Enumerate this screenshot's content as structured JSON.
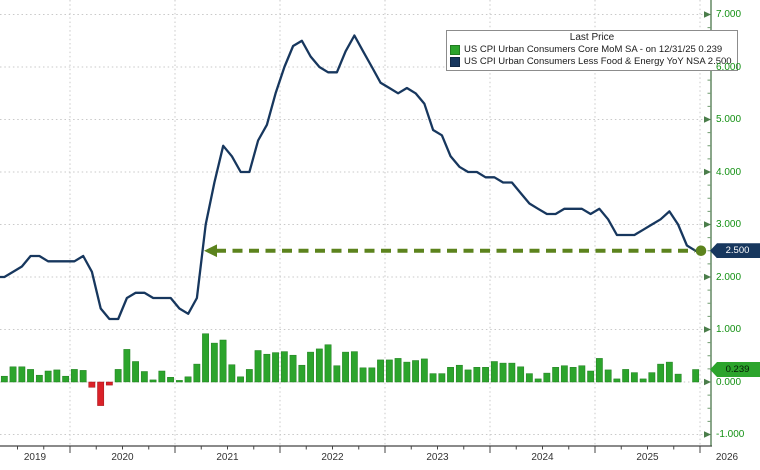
{
  "legend": {
    "title": "Last Price",
    "items": [
      {
        "label": "US CPI Urban Consumers Core MoM SA -  on 12/31/25 0.239",
        "swatch_color": "#2ca42c"
      },
      {
        "label": "US CPI Urban Consumers Less Food & Energy YoY NSA 2.500",
        "swatch_color": "#17375e"
      }
    ]
  },
  "axes": {
    "y_tick_labels": [
      "7.000",
      "6.000",
      "5.000",
      "4.000",
      "3.000",
      "2.000",
      "1.000",
      "0.000",
      "-1.000"
    ],
    "x_year_labels": [
      "2019",
      "2020",
      "2021",
      "2022",
      "2023",
      "2024",
      "2025",
      "2026"
    ],
    "y_label_color": "#149114"
  },
  "badges": [
    {
      "text": "2.500",
      "value": 2.5,
      "bg": "#17375e",
      "fg": "#ffffff"
    },
    {
      "text": "0.239",
      "value": 0.239,
      "bg": "#2ca42c",
      "fg": "#041a04"
    }
  ],
  "colors": {
    "bar_positive": "#2ca42c",
    "bar_negative": "#da2128",
    "line": "#17375e",
    "arrow": "#5c831d",
    "grid": "#c9c9c9",
    "axis_line": "#444444",
    "y_axis_line": "#3d6b3d"
  },
  "chart_data": {
    "type": "combo",
    "title": "",
    "x_start_month": "2019-05",
    "x_end_month": "2025-12",
    "x_unit": "month",
    "ylim": [
      -1,
      7
    ],
    "y_ticks": [
      7,
      6,
      5,
      4,
      3,
      2,
      1,
      0,
      -1
    ],
    "grid": true,
    "legend_position": "top-right",
    "series": [
      {
        "name": "US CPI Urban Consumers Core MoM SA",
        "type": "bar",
        "unit": "% MoM",
        "last_date": "12/31/25",
        "last_value": 0.239,
        "values": [
          0.11,
          0.29,
          0.29,
          0.24,
          0.13,
          0.21,
          0.23,
          0.11,
          0.24,
          0.22,
          -0.1,
          -0.45,
          -0.06,
          0.24,
          0.62,
          0.39,
          0.2,
          0.04,
          0.21,
          0.09,
          0.03,
          0.1,
          0.34,
          0.92,
          0.74,
          0.8,
          0.33,
          0.1,
          0.24,
          0.6,
          0.53,
          0.56,
          0.58,
          0.51,
          0.32,
          0.57,
          0.63,
          0.71,
          0.31,
          0.57,
          0.58,
          0.27,
          0.27,
          0.42,
          0.42,
          0.45,
          0.38,
          0.41,
          0.44,
          0.16,
          0.16,
          0.28,
          0.32,
          0.23,
          0.28,
          0.28,
          0.39,
          0.36,
          0.36,
          0.29,
          0.16,
          0.06,
          0.17,
          0.28,
          0.31,
          0.28,
          0.31,
          0.21,
          0.45,
          0.23,
          0.06,
          0.24,
          0.18,
          0.06,
          0.18,
          0.34,
          0.38,
          0.15,
          null,
          0.239
        ]
      },
      {
        "name": "US CPI Urban Consumers Less Food & Energy YoY NSA",
        "type": "line",
        "unit": "% YoY",
        "last_value": 2.5,
        "values": [
          2.0,
          2.1,
          2.2,
          2.4,
          2.4,
          2.3,
          2.3,
          2.3,
          2.3,
          2.4,
          2.1,
          1.4,
          1.2,
          1.2,
          1.6,
          1.7,
          1.7,
          1.6,
          1.6,
          1.6,
          1.4,
          1.3,
          1.6,
          3.0,
          3.8,
          4.5,
          4.3,
          4.0,
          4.0,
          4.6,
          4.9,
          5.5,
          6.0,
          6.4,
          6.5,
          6.2,
          6.0,
          5.9,
          5.9,
          6.3,
          6.6,
          6.3,
          6.0,
          5.7,
          5.6,
          5.5,
          5.6,
          5.5,
          5.3,
          4.8,
          4.7,
          4.3,
          4.1,
          4.0,
          4.0,
          3.9,
          3.9,
          3.8,
          3.8,
          3.6,
          3.4,
          3.3,
          3.2,
          3.2,
          3.3,
          3.3,
          3.3,
          3.2,
          3.3,
          3.1,
          2.8,
          2.8,
          2.8,
          2.9,
          3.0,
          3.1,
          3.25,
          3.0,
          2.6,
          2.5
        ]
      }
    ],
    "annotation": {
      "type": "horizontal-double-arrow",
      "value": 2.5,
      "x_from_month": "2021-04",
      "x_to_month": "2025-12"
    }
  }
}
